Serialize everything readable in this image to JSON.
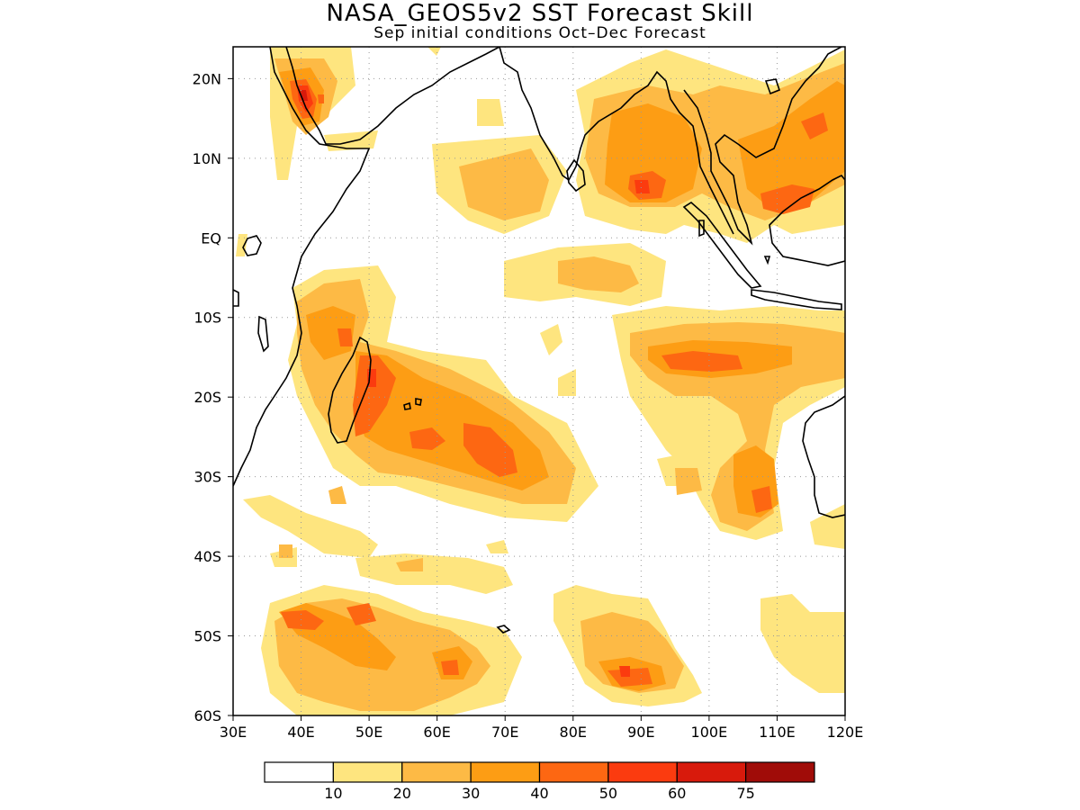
{
  "title": "NASA_GEOS5v2 SST Forecast Skill",
  "subtitle": "Sep initial conditions  Oct–Dec Forecast",
  "map": {
    "lon_range": [
      30,
      120
    ],
    "lat_range": [
      -60,
      24
    ],
    "lon_ticks": [
      30,
      40,
      50,
      60,
      70,
      80,
      90,
      100,
      110,
      120
    ],
    "lon_labels": [
      "30E",
      "40E",
      "50E",
      "60E",
      "70E",
      "80E",
      "90E",
      "100E",
      "110E",
      "120E"
    ],
    "lat_ticks": [
      20,
      10,
      0,
      -10,
      -20,
      -30,
      -40,
      -50,
      -60
    ],
    "lat_labels": [
      "20N",
      "10N",
      "EQ",
      "10S",
      "20S",
      "30S",
      "40S",
      "50S",
      "60S"
    ],
    "grid": true
  },
  "colorbar": {
    "colors": [
      "#ffffff",
      "#fee57f",
      "#fdba45",
      "#fd9d14",
      "#fd6712",
      "#fb3b0f",
      "#d81a0c",
      "#a00c08"
    ],
    "labels": [
      "10",
      "20",
      "30",
      "40",
      "50",
      "60",
      "75"
    ]
  }
}
